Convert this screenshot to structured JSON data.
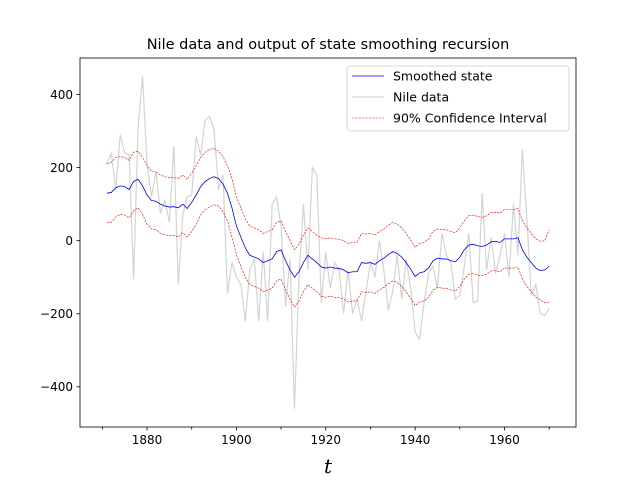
{
  "chart_data": {
    "type": "line",
    "title": "Nile data and output of state smoothing recursion",
    "xlabel": "t",
    "ylabel": "",
    "xlim": [
      1865,
      1976
    ],
    "ylim": [
      -510,
      500
    ],
    "x_ticks": [
      1880,
      1900,
      1920,
      1940,
      1960
    ],
    "y_ticks": [
      -400,
      -200,
      0,
      200,
      400
    ],
    "x_tick_labels": [
      "1880",
      "1900",
      "1920",
      "1940",
      "1960"
    ],
    "y_tick_labels": [
      "−400",
      "−200",
      "0",
      "200",
      "400"
    ],
    "grid": false,
    "legend_position": "top-right",
    "x": [
      1871,
      1872,
      1873,
      1874,
      1875,
      1876,
      1877,
      1878,
      1879,
      1880,
      1881,
      1882,
      1883,
      1884,
      1885,
      1886,
      1887,
      1888,
      1889,
      1890,
      1891,
      1892,
      1893,
      1894,
      1895,
      1896,
      1897,
      1898,
      1899,
      1900,
      1901,
      1902,
      1903,
      1904,
      1905,
      1906,
      1907,
      1908,
      1909,
      1910,
      1911,
      1912,
      1913,
      1914,
      1915,
      1916,
      1917,
      1918,
      1919,
      1920,
      1921,
      1922,
      1923,
      1924,
      1925,
      1926,
      1927,
      1928,
      1929,
      1930,
      1931,
      1932,
      1933,
      1934,
      1935,
      1936,
      1937,
      1938,
      1939,
      1940,
      1941,
      1942,
      1943,
      1944,
      1945,
      1946,
      1947,
      1948,
      1949,
      1950,
      1951,
      1952,
      1953,
      1954,
      1955,
      1956,
      1957,
      1958,
      1959,
      1960,
      1961,
      1962,
      1963,
      1964,
      1965,
      1966,
      1967,
      1968,
      1969,
      1970
    ],
    "series": [
      {
        "name": "Smoothed state",
        "color": "#0000ff",
        "style": "solid",
        "values": [
          130,
          132,
          145,
          150,
          148,
          140,
          162,
          168,
          150,
          125,
          110,
          108,
          100,
          95,
          92,
          93,
          90,
          100,
          88,
          105,
          125,
          148,
          162,
          170,
          175,
          170,
          155,
          130,
          90,
          40,
          10,
          -20,
          -40,
          -45,
          -50,
          -60,
          -55,
          -50,
          -30,
          -25,
          -55,
          -80,
          -100,
          -85,
          -60,
          -40,
          -50,
          -60,
          -72,
          -75,
          -72,
          -75,
          -76,
          -80,
          -88,
          -85,
          -85,
          -60,
          -62,
          -60,
          -65,
          -55,
          -48,
          -38,
          -30,
          -35,
          -45,
          -60,
          -78,
          -98,
          -88,
          -85,
          -75,
          -55,
          -48,
          -50,
          -50,
          -55,
          -58,
          -45,
          -25,
          -12,
          -10,
          -14,
          -16,
          -12,
          -3,
          -2,
          -5,
          5,
          5,
          5,
          8,
          -25,
          -45,
          -60,
          -75,
          -82,
          -80,
          -70
        ],
        "band_upper": [
          210,
          215,
          228,
          230,
          228,
          220,
          242,
          245,
          228,
          205,
          190,
          188,
          180,
          175,
          172,
          173,
          170,
          180,
          168,
          185,
          205,
          228,
          242,
          250,
          252,
          245,
          230,
          205,
          170,
          120,
          90,
          60,
          40,
          35,
          30,
          20,
          25,
          30,
          50,
          55,
          25,
          0,
          -25,
          -10,
          15,
          35,
          25,
          15,
          8,
          5,
          8,
          5,
          4,
          0,
          -8,
          -5,
          -5,
          20,
          18,
          20,
          15,
          25,
          32,
          42,
          50,
          45,
          35,
          20,
          2,
          -18,
          -8,
          -5,
          5,
          25,
          32,
          30,
          30,
          25,
          22,
          35,
          55,
          68,
          70,
          66,
          64,
          68,
          77,
          78,
          75,
          85,
          85,
          85,
          88,
          55,
          35,
          20,
          5,
          -2,
          0,
          30
        ],
        "band_lower": [
          50,
          50,
          65,
          72,
          70,
          62,
          82,
          90,
          72,
          45,
          32,
          30,
          20,
          16,
          14,
          15,
          10,
          22,
          10,
          25,
          45,
          70,
          85,
          92,
          98,
          95,
          80,
          55,
          10,
          -38,
          -70,
          -100,
          -120,
          -125,
          -130,
          -140,
          -135,
          -130,
          -110,
          -105,
          -135,
          -160,
          -182,
          -165,
          -140,
          -120,
          -130,
          -140,
          -152,
          -155,
          -152,
          -155,
          -156,
          -160,
          -168,
          -165,
          -165,
          -140,
          -142,
          -140,
          -145,
          -135,
          -128,
          -118,
          -110,
          -115,
          -125,
          -140,
          -158,
          -178,
          -168,
          -165,
          -155,
          -135,
          -128,
          -130,
          -130,
          -135,
          -138,
          -125,
          -105,
          -92,
          -90,
          -94,
          -96,
          -92,
          -83,
          -82,
          -85,
          -75,
          -75,
          -75,
          -72,
          -105,
          -125,
          -140,
          -155,
          -162,
          -170,
          -168
        ]
      },
      {
        "name": "Nile data",
        "color": "#d3d3d3",
        "style": "solid",
        "values": [
          210,
          240,
          140,
          290,
          240,
          235,
          -105,
          310,
          450,
          210,
          120,
          190,
          75,
          110,
          50,
          260,
          -120,
          70,
          120,
          125,
          285,
          235,
          330,
          340,
          305,
          140,
          180,
          -145,
          -60,
          -100,
          -120,
          -220,
          -80,
          -50,
          -220,
          -30,
          -220,
          100,
          120,
          40,
          -180,
          -50,
          -460,
          -100,
          100,
          -80,
          200,
          180,
          -170,
          -30,
          -130,
          -60,
          -80,
          -200,
          -80,
          -200,
          -160,
          -220,
          -140,
          -60,
          -100,
          0,
          -80,
          -190,
          -140,
          -40,
          -160,
          -50,
          -130,
          -250,
          -270,
          -170,
          -90,
          -70,
          -130,
          20,
          -40,
          -60,
          -160,
          -150,
          -70,
          20,
          -170,
          -165,
          130,
          -80,
          10,
          -90,
          -40,
          20,
          -100,
          100,
          -40,
          250,
          60,
          -150,
          -120,
          -200,
          -205,
          -185
        ]
      }
    ],
    "legend": [
      {
        "label": "Smoothed state",
        "color": "#0000ff",
        "style": "solid"
      },
      {
        "label": "Nile data",
        "color": "#d3d3d3",
        "style": "solid"
      },
      {
        "label": "90% Confidence Interval",
        "color": "#ff0000",
        "style": "dashed"
      }
    ]
  }
}
